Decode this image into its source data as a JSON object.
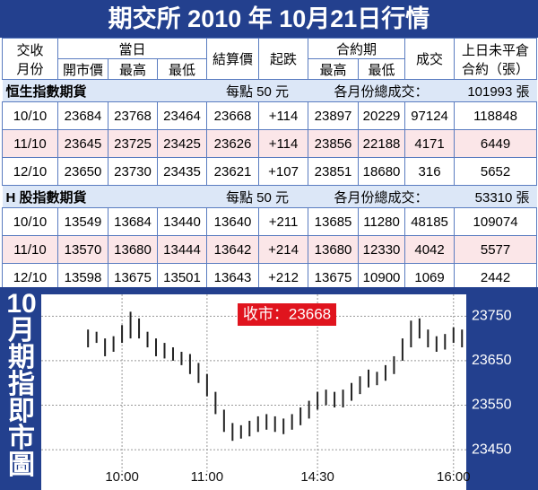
{
  "title": "期交所 2010 年 10月21日行情",
  "table": {
    "header_top": [
      "交收",
      "當日",
      "結算價",
      "起跌",
      "合約期",
      "成交",
      "上日未平倉"
    ],
    "header_top_second_line": [
      "月份",
      "合約（張）"
    ],
    "header_sub": [
      "開市價",
      "最高",
      "最低",
      "最高",
      "最低"
    ],
    "sections": [
      {
        "name": "恒生指數期貨",
        "unit": "每點 50 元",
        "total_label": "各月份總成交：",
        "total": "101993 張",
        "rows": [
          [
            "10/10",
            "23684",
            "23768",
            "23464",
            "23668",
            "+114",
            "23897",
            "20229",
            "97124",
            "118848"
          ],
          [
            "11/10",
            "23645",
            "23725",
            "23425",
            "23626",
            "+114",
            "23856",
            "22188",
            "4171",
            "6449"
          ],
          [
            "12/10",
            "23650",
            "23730",
            "23435",
            "23621",
            "+107",
            "23851",
            "18680",
            "316",
            "5652"
          ]
        ]
      },
      {
        "name": "H 股指數期貨",
        "unit": "每點 50 元",
        "total_label": "各月份總成交：",
        "total": "53310 張",
        "rows": [
          [
            "10/10",
            "13549",
            "13684",
            "13440",
            "13640",
            "+211",
            "13685",
            "11280",
            "48185",
            "109074"
          ],
          [
            "11/10",
            "13570",
            "13680",
            "13444",
            "13642",
            "+214",
            "13680",
            "12330",
            "4042",
            "5577"
          ],
          [
            "12/10",
            "13598",
            "13675",
            "13501",
            "13643",
            "+212",
            "13675",
            "10900",
            "1069",
            "2442"
          ]
        ]
      }
    ]
  },
  "chart_data": {
    "type": "candlestick",
    "side_title": "10月期指即市圖",
    "annotation": "收市：23668",
    "categories": [
      null,
      null,
      null,
      null,
      null,
      null,
      null,
      "10:00",
      null,
      null,
      null,
      null,
      null,
      null,
      null,
      null,
      null,
      "11:00",
      null,
      null,
      null,
      null,
      null,
      null,
      null,
      null,
      null,
      null,
      null,
      null,
      "14:30",
      null,
      null,
      null,
      null,
      null,
      null,
      null,
      null,
      null,
      null,
      null,
      null,
      null,
      null,
      null,
      "16:00",
      null
    ],
    "low": [
      null,
      null,
      null,
      23680,
      23690,
      23660,
      23670,
      23690,
      23700,
      23700,
      23680,
      23660,
      23655,
      23650,
      23640,
      23620,
      23600,
      23570,
      23530,
      23490,
      23470,
      23475,
      23480,
      23490,
      23495,
      23490,
      23485,
      23495,
      23505,
      23520,
      23540,
      23550,
      23545,
      23545,
      23560,
      23575,
      23590,
      23595,
      23605,
      23620,
      23650,
      23680,
      23700,
      23680,
      23670,
      23675,
      23690,
      23680
    ],
    "high": [
      null,
      null,
      null,
      23720,
      23715,
      23700,
      23705,
      23730,
      23760,
      23745,
      23715,
      23700,
      23690,
      23680,
      23670,
      23665,
      23645,
      23620,
      23580,
      23540,
      23510,
      23505,
      23515,
      23525,
      23530,
      23525,
      23520,
      23530,
      23545,
      23560,
      23580,
      23585,
      23580,
      23585,
      23600,
      23615,
      23630,
      23625,
      23640,
      23660,
      23700,
      23740,
      23745,
      23720,
      23705,
      23710,
      23725,
      23720
    ],
    "color": "#222222",
    "ylim": [
      23420,
      23795
    ],
    "yticks": [
      23450,
      23550,
      23650,
      23750
    ],
    "grid": true
  }
}
